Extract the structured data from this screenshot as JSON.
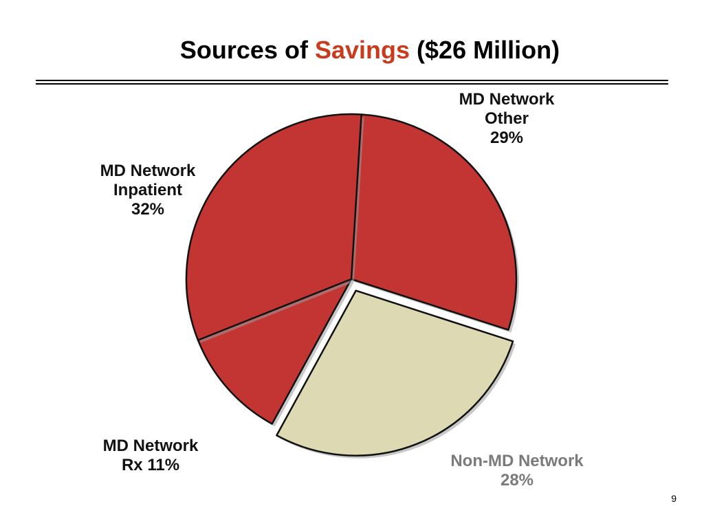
{
  "slide": {
    "title_prefix": "Sources of",
    "title_accent": "Savings",
    "title_suffix": "($26 Million)",
    "page_number": "9"
  },
  "colors": {
    "accent": "#c83c1e",
    "md_slice": "#c23533",
    "non_md_slice": "#ddd9b2",
    "label_dark": "#111111",
    "label_gray": "#7a7a7a"
  },
  "chart_data": {
    "type": "pie",
    "title": "Sources of Savings ($26 Million)",
    "slices": [
      {
        "label_lines": [
          "MD Network",
          "Other",
          "29%"
        ],
        "category": "MD Network Other",
        "value": 29
      },
      {
        "label_lines": [
          "Non-MD Network",
          "28%"
        ],
        "category": "Non-MD Network",
        "value": 28,
        "exploded": true
      },
      {
        "label_lines": [
          "MD Network",
          "Rx  11%"
        ],
        "category": "MD Network Rx",
        "value": 11
      },
      {
        "label_lines": [
          "MD Network",
          "Inpatient",
          "32%"
        ],
        "category": "MD Network Inpatient",
        "value": 32
      }
    ]
  }
}
